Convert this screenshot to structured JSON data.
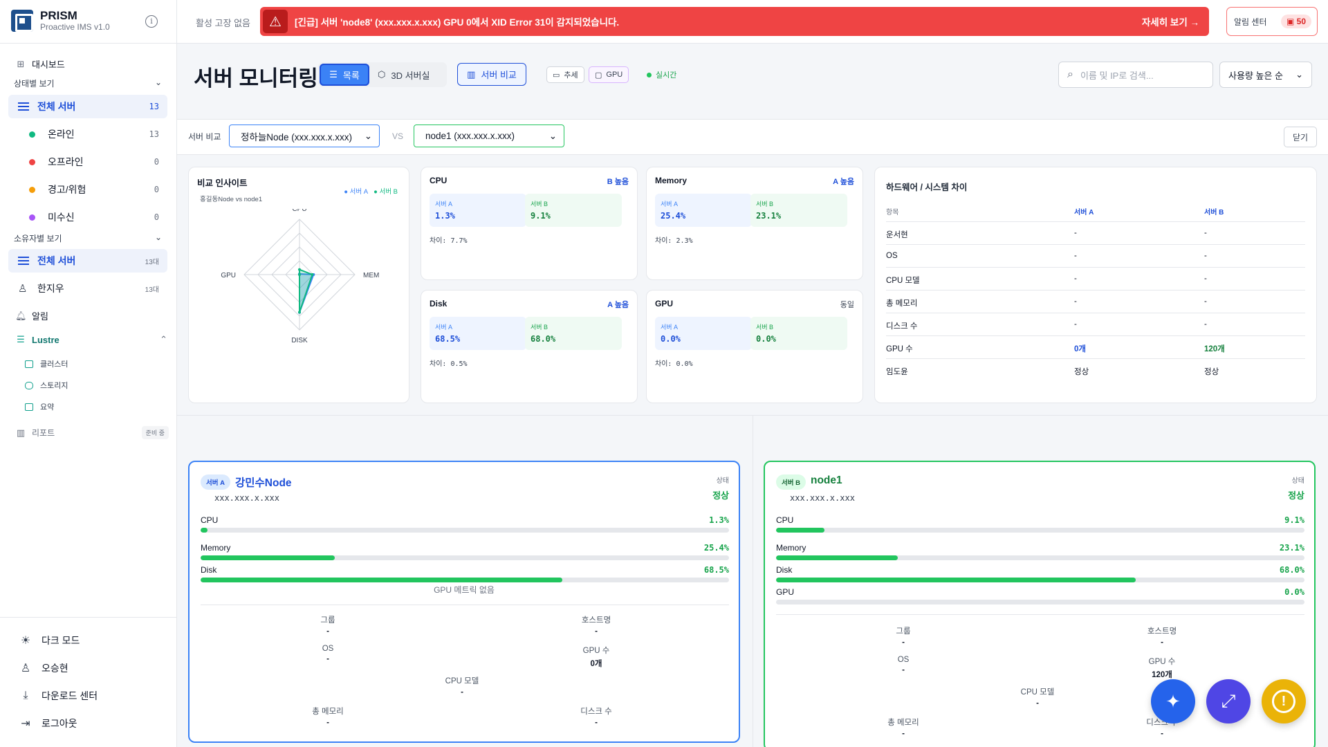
{
  "brand": {
    "title": "PRISM",
    "subtitle": "Proactive IMS v1.0"
  },
  "sidebar": {
    "dashboard": "대시보드",
    "status_section": "상태별 보기",
    "status_items": [
      {
        "label": "전체 서버",
        "count": "13",
        "color": "#1d4ed8"
      },
      {
        "label": "온라인",
        "count": "13",
        "color": "#10b981"
      },
      {
        "label": "오프라인",
        "count": "0",
        "color": "#ef4444"
      },
      {
        "label": "경고/위험",
        "count": "0",
        "color": "#f59e0b"
      },
      {
        "label": "미수신",
        "count": "0",
        "color": "#a855f7"
      }
    ],
    "owner_section": "소유자별 보기",
    "owner_items": [
      {
        "label": "전체 서버",
        "count": "13대"
      },
      {
        "label": "한지우",
        "count": "13대"
      }
    ],
    "alarm": "알림",
    "lustre": "Lustre",
    "lustre_items": [
      "클러스터",
      "스토리지",
      "요약"
    ],
    "report": "리포트",
    "report_badge": "준비 중",
    "footer": [
      "다크 모드",
      "오승현",
      "다운로드 센터",
      "로그아웃"
    ]
  },
  "topbar": {
    "status": "활성 고장 없음",
    "alert_text": "[긴급] 서버 'node8' (xxx.xxx.x.xxx) GPU 0에서 XID Error 31이 감지되었습니다.",
    "alert_more": "자세히 보기 →",
    "alarm_center": "알림 센터",
    "alarm_count": "50"
  },
  "header": {
    "title": "서버 모니터링",
    "view_list": "목록",
    "view_3d": "3D 서버실",
    "compare": "서버 비교",
    "chip_trend": "추세",
    "chip_gpu": "GPU",
    "live": "실시간",
    "search_placeholder": "이름 및 IP로 검색...",
    "sort": "사용량 높은 순"
  },
  "compare_bar": {
    "label": "서버 비교",
    "server_a": "정하늘Node (xxx.xxx.x.xxx)",
    "vs": "VS",
    "server_b": "node1 (xxx.xxx.x.xxx)",
    "close": "닫기"
  },
  "insight": {
    "title": "비교 인사이트",
    "subtitle": "홍길동Node vs node1",
    "legend_a": "서버 A",
    "legend_b": "서버 B",
    "axes": [
      "CPU",
      "MEM",
      "DISK",
      "GPU"
    ],
    "series_a": [
      1.3,
      25.4,
      68.5,
      0.0
    ],
    "series_b": [
      9.1,
      23.1,
      68.0,
      0.0
    ],
    "color_a": "#3b82f6",
    "color_b": "#10b981"
  },
  "metrics": [
    {
      "title": "CPU",
      "tag": "B 높음",
      "a_label": "서버 A",
      "a": "1.3%",
      "b_label": "서버 B",
      "b": "9.1%",
      "diff": "차이: 7.7%"
    },
    {
      "title": "Memory",
      "tag": "A 높음",
      "a_label": "서버 A",
      "a": "25.4%",
      "b_label": "서버 B",
      "b": "23.1%",
      "diff": "차이: 2.3%"
    },
    {
      "title": "Disk",
      "tag": "A 높음",
      "a_label": "서버 A",
      "a": "68.5%",
      "b_label": "서버 B",
      "b": "68.0%",
      "diff": "차이: 0.5%"
    },
    {
      "title": "GPU",
      "tag": "동일",
      "a_label": "서버 A",
      "a": "0.0%",
      "b_label": "서버 B",
      "b": "0.0%",
      "diff": "차이: 0.0%"
    }
  ],
  "hardware": {
    "title": "하드웨어 / 시스템 차이",
    "head": [
      "항목",
      "서버 A",
      "서버 B"
    ],
    "rows": [
      [
        "운서현",
        "-",
        "-"
      ],
      [
        "OS",
        "-",
        "-"
      ],
      [
        "CPU 모델",
        "-",
        "-"
      ],
      [
        "총 메모리",
        "-",
        "-"
      ],
      [
        "디스크 수",
        "-",
        "-"
      ],
      [
        "GPU 수",
        "0개",
        "120개"
      ],
      [
        "임도윤",
        "정상",
        "정상"
      ]
    ]
  },
  "server_a": {
    "badge": "서버 A",
    "name": "강민수Node",
    "ip": "xxx.xxx.x.xxx",
    "status_label": "상태",
    "status": "정상",
    "cpu_label": "CPU",
    "cpu": "1.3%",
    "cpu_pct": 1.3,
    "mem_label": "Memory",
    "mem": "25.4%",
    "mem_pct": 25.4,
    "disk_label": "Disk",
    "disk": "68.5%",
    "disk_pct": 68.5,
    "no_gpu": "GPU 메트릭 없음",
    "kv": [
      {
        "k": "그룹",
        "v": "-"
      },
      {
        "k": "호스트명",
        "v": "-"
      },
      {
        "k": "OS",
        "v": "-"
      },
      {
        "k": "GPU 수",
        "v": "0개"
      },
      {
        "k": "CPU 모델",
        "v": "-"
      },
      {
        "k": "총 메모리",
        "v": "-"
      },
      {
        "k": "디스크 수",
        "v": "-"
      }
    ]
  },
  "server_b": {
    "badge": "서버 B",
    "name": "node1",
    "ip": "xxx.xxx.x.xxx",
    "status_label": "상태",
    "status": "정상",
    "cpu_label": "CPU",
    "cpu": "9.1%",
    "cpu_pct": 9.1,
    "mem_label": "Memory",
    "mem": "23.1%",
    "mem_pct": 23.1,
    "disk_label": "Disk",
    "disk": "68.0%",
    "disk_pct": 68.0,
    "gpu_label": "GPU",
    "gpu": "0.0%",
    "gpu_pct": 0.0,
    "kv": [
      {
        "k": "그룹",
        "v": "-"
      },
      {
        "k": "호스트명",
        "v": "-"
      },
      {
        "k": "OS",
        "v": "-"
      },
      {
        "k": "GPU 수",
        "v": "120개"
      },
      {
        "k": "CPU 모델",
        "v": "-"
      },
      {
        "k": "총 메모리",
        "v": "-"
      },
      {
        "k": "디스크 수",
        "v": "-"
      }
    ]
  },
  "fabs": [
    {
      "name": "ai-assistant",
      "color": "#2563eb"
    },
    {
      "name": "fullscreen",
      "color": "#4f46e5"
    },
    {
      "name": "alert",
      "color": "#eab308"
    }
  ]
}
